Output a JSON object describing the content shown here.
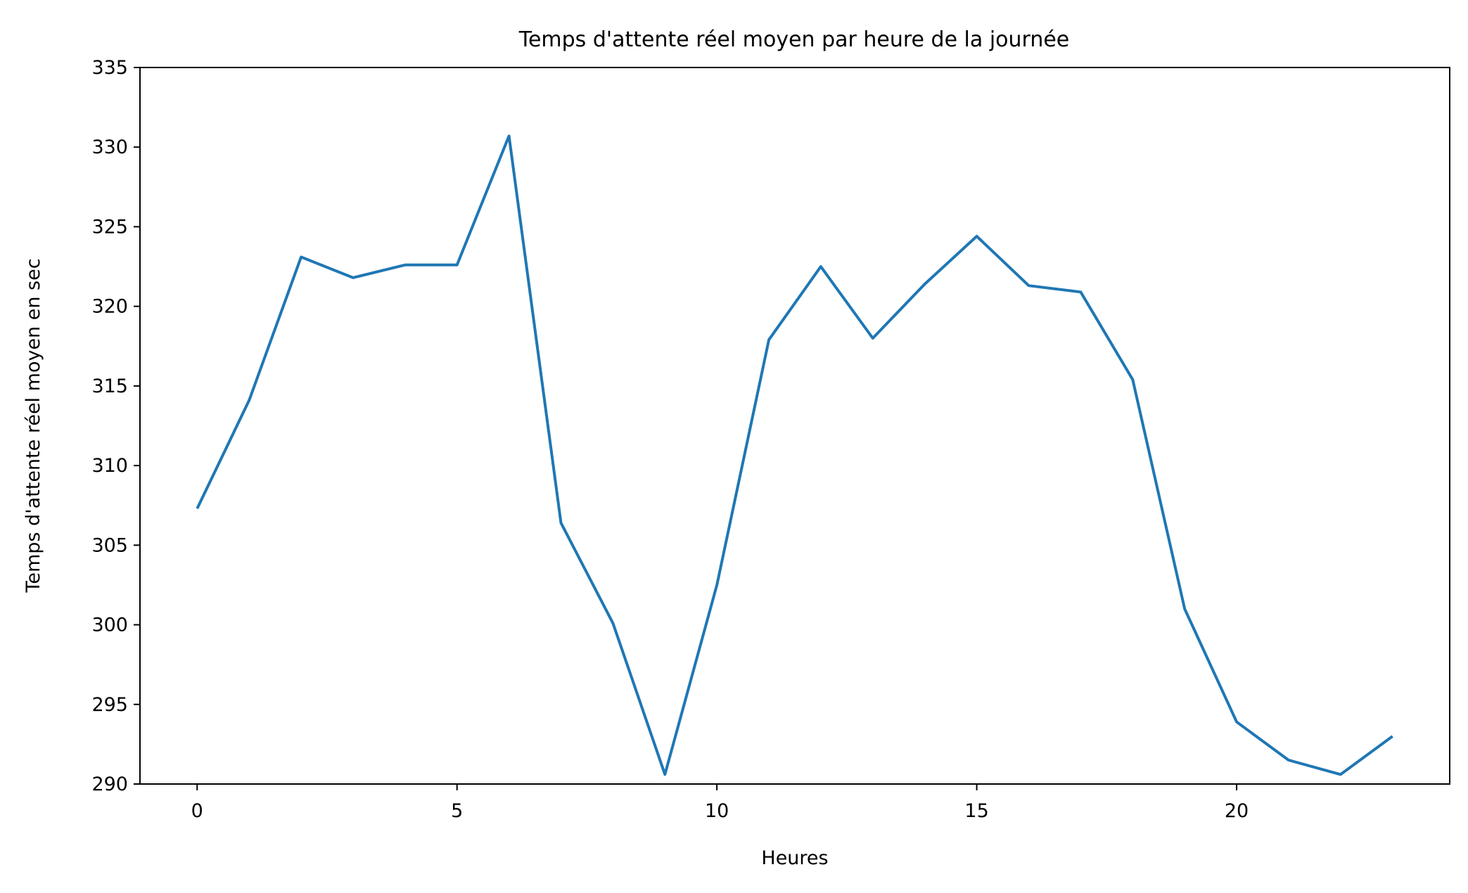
{
  "chart_data": {
    "type": "line",
    "title": "Temps d'attente réel moyen par heure de la journée",
    "xlabel": "Heures",
    "ylabel": "Temps d'attente réel moyen en sec",
    "xlim": [
      -1.1,
      24.1
    ],
    "ylim": [
      290,
      335
    ],
    "x_ticks": [
      0,
      5,
      10,
      15,
      20
    ],
    "y_ticks": [
      290,
      295,
      300,
      305,
      310,
      315,
      320,
      325,
      330,
      335
    ],
    "grid": false,
    "line_color": "#1f77b4",
    "series": [
      {
        "x": [
          0,
          1,
          2,
          3,
          4,
          5,
          6,
          7,
          8,
          9,
          10,
          11,
          12,
          13,
          14,
          15,
          16,
          17,
          18,
          19,
          20,
          21,
          22,
          23
        ],
        "values": [
          307.3,
          314.1,
          323.1,
          321.8,
          322.6,
          322.6,
          330.7,
          306.4,
          300.1,
          290.6,
          302.5,
          317.9,
          322.5,
          318.0,
          321.4,
          324.4,
          321.3,
          320.9,
          315.4,
          301.0,
          293.9,
          291.5,
          290.6,
          293.0
        ]
      }
    ]
  }
}
